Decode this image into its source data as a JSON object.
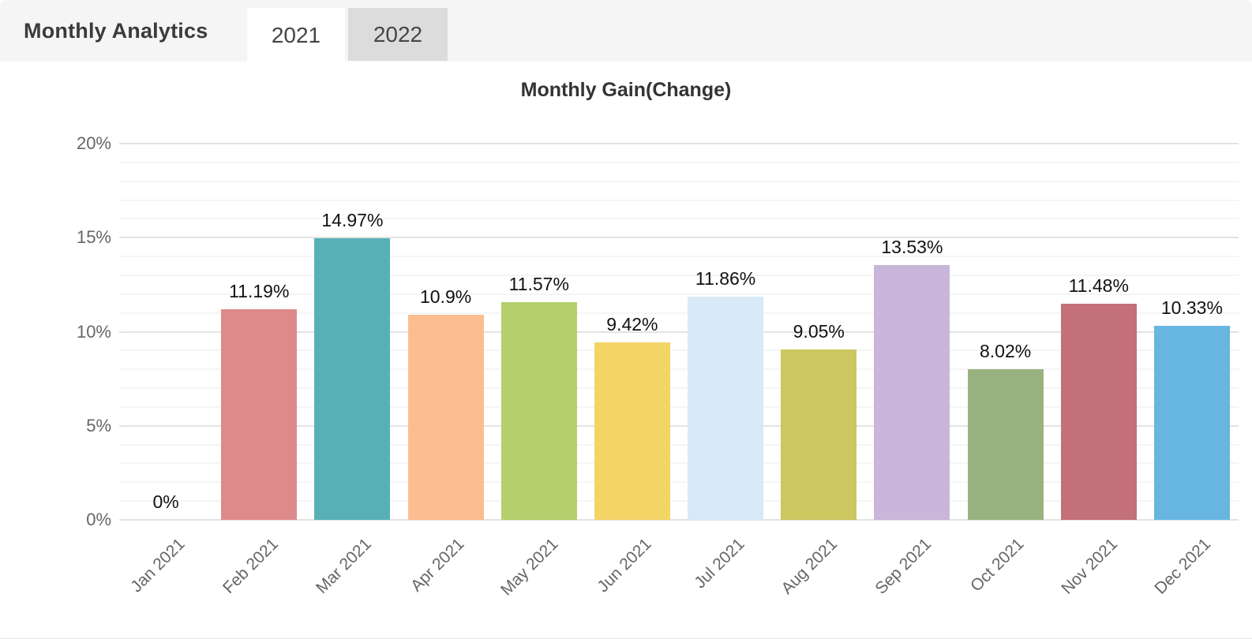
{
  "header": {
    "title": "Monthly Analytics",
    "tabs": [
      {
        "label": "2021",
        "active": true
      },
      {
        "label": "2022",
        "active": false
      }
    ]
  },
  "chart_data": {
    "type": "bar",
    "title": "Monthly Gain(Change)",
    "categories": [
      "Jan 2021",
      "Feb 2021",
      "Mar 2021",
      "Apr 2021",
      "May 2021",
      "Jun 2021",
      "Jul 2021",
      "Aug 2021",
      "Sep 2021",
      "Oct 2021",
      "Nov 2021",
      "Dec 2021"
    ],
    "values": [
      0,
      11.19,
      14.97,
      10.9,
      11.57,
      9.42,
      11.86,
      9.05,
      13.53,
      8.02,
      11.48,
      10.33
    ],
    "value_labels": [
      "0%",
      "11.19%",
      "14.97%",
      "10.9%",
      "11.57%",
      "9.42%",
      "11.86%",
      "9.05%",
      "13.53%",
      "8.02%",
      "11.48%",
      "10.33%"
    ],
    "bar_colors": [
      null,
      "#de8a8a",
      "#57b1b4",
      "#fcbd90",
      "#b4d06c",
      "#f3d566",
      "#d8e9f7",
      "#cdc75f",
      "#c9b6da",
      "#99b380",
      "#c3707a",
      "#67b6e2"
    ],
    "xlabel": "",
    "ylabel": "",
    "ylim": [
      0,
      20
    ],
    "y_ticks": [
      {
        "value": 0,
        "label": "0%"
      },
      {
        "value": 5,
        "label": "5%"
      },
      {
        "value": 10,
        "label": "10%"
      },
      {
        "value": 15,
        "label": "15%"
      },
      {
        "value": 20,
        "label": "20%"
      }
    ],
    "minor_grid_step": 1,
    "grid": true,
    "legend": false
  },
  "ui_colors": {
    "header_bg": "#f5f5f5",
    "inactive_tab_bg": "#dcdcdc",
    "active_tab_bg": "#ffffff",
    "grid_major": "#e3e3e3",
    "grid_minor": "#f5f5f5",
    "axis_text": "#666666"
  }
}
